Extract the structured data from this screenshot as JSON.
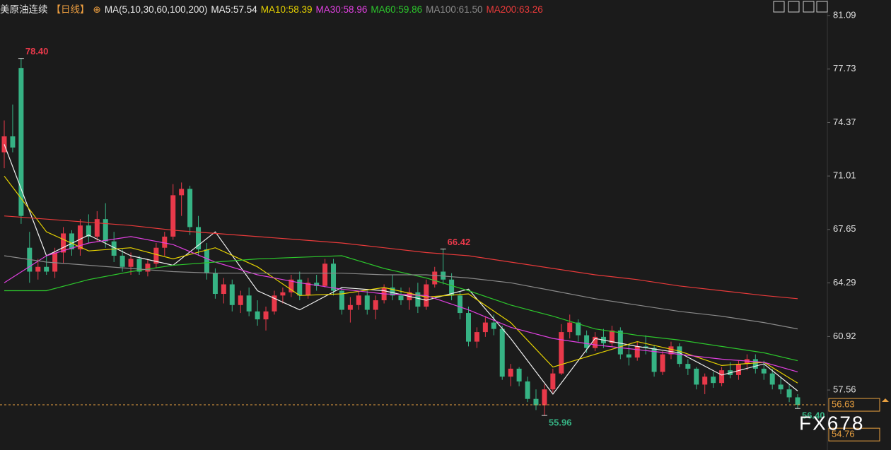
{
  "chart_data": {
    "type": "candlestick",
    "title": "美原油连续",
    "period": "【日线】",
    "ma_params": "MA(5,10,30,60,100,200)",
    "watermark": "FX678",
    "ylim": [
      53.79,
      82.07
    ],
    "yticks": [
      81.09,
      77.73,
      74.37,
      71.01,
      67.65,
      64.29,
      60.92,
      57.56
    ],
    "up_color": "#e8394a",
    "down_color": "#36b384",
    "ohlc": [
      [
        72.5,
        74.5,
        71.5,
        73.5
      ],
      [
        73.5,
        75.5,
        72.5,
        72.8
      ],
      [
        77.8,
        78.4,
        68.0,
        68.5
      ],
      [
        66.5,
        67.5,
        64.3,
        65.0
      ],
      [
        65.0,
        65.8,
        64.5,
        65.3
      ],
      [
        65.3,
        66.0,
        64.8,
        65.0
      ],
      [
        65.0,
        66.5,
        64.6,
        66.2
      ],
      [
        66.2,
        67.8,
        65.5,
        67.4
      ],
      [
        67.4,
        67.6,
        66.0,
        66.4
      ],
      [
        66.4,
        68.3,
        66.0,
        67.9
      ],
      [
        67.9,
        68.6,
        66.8,
        67.2
      ],
      [
        67.2,
        68.8,
        66.9,
        68.3
      ],
      [
        68.3,
        69.3,
        66.5,
        66.9
      ],
      [
        66.9,
        67.5,
        65.6,
        66.0
      ],
      [
        66.0,
        66.4,
        65.0,
        65.3
      ],
      [
        65.3,
        66.2,
        64.8,
        65.8
      ],
      [
        65.8,
        66.0,
        64.8,
        65.0
      ],
      [
        65.0,
        65.8,
        64.7,
        65.5
      ],
      [
        65.5,
        66.8,
        65.2,
        66.5
      ],
      [
        66.5,
        67.5,
        66.0,
        67.2
      ],
      [
        67.2,
        70.5,
        67.0,
        69.8
      ],
      [
        69.8,
        70.6,
        68.5,
        70.2
      ],
      [
        70.2,
        70.4,
        67.3,
        67.8
      ],
      [
        67.8,
        68.5,
        66.0,
        66.4
      ],
      [
        66.4,
        66.8,
        64.5,
        64.9
      ],
      [
        64.9,
        65.2,
        63.3,
        63.6
      ],
      [
        63.6,
        64.6,
        63.0,
        64.2
      ],
      [
        64.2,
        64.5,
        62.5,
        62.9
      ],
      [
        62.9,
        63.8,
        62.4,
        63.5
      ],
      [
        63.5,
        64.0,
        62.2,
        62.5
      ],
      [
        62.5,
        63.2,
        61.6,
        62.0
      ],
      [
        62.0,
        62.8,
        61.3,
        62.5
      ],
      [
        62.5,
        63.8,
        62.3,
        63.5
      ],
      [
        63.5,
        64.0,
        63.0,
        63.7
      ],
      [
        63.7,
        64.8,
        63.4,
        64.5
      ],
      [
        64.5,
        65.0,
        63.2,
        63.5
      ],
      [
        63.5,
        64.6,
        63.3,
        64.3
      ],
      [
        64.3,
        64.8,
        63.8,
        64.1
      ],
      [
        64.1,
        65.8,
        64.0,
        65.5
      ],
      [
        65.5,
        65.8,
        63.5,
        63.8
      ],
      [
        63.8,
        64.0,
        62.3,
        62.6
      ],
      [
        62.6,
        63.4,
        61.8,
        62.9
      ],
      [
        62.9,
        63.8,
        62.6,
        63.5
      ],
      [
        63.5,
        63.8,
        62.3,
        62.6
      ],
      [
        62.6,
        63.5,
        62.0,
        63.2
      ],
      [
        63.2,
        64.2,
        63.0,
        64.0
      ],
      [
        64.0,
        64.8,
        63.2,
        63.5
      ],
      [
        63.5,
        64.0,
        62.9,
        63.2
      ],
      [
        63.2,
        64.0,
        62.6,
        63.7
      ],
      [
        63.7,
        64.3,
        62.4,
        62.8
      ],
      [
        62.8,
        64.5,
        62.6,
        64.2
      ],
      [
        64.2,
        65.3,
        64.0,
        65.0
      ],
      [
        65.0,
        66.42,
        64.2,
        64.5
      ],
      [
        64.5,
        64.9,
        63.2,
        63.5
      ],
      [
        63.5,
        63.8,
        62.0,
        62.4
      ],
      [
        62.4,
        62.8,
        60.3,
        60.6
      ],
      [
        60.6,
        61.5,
        60.2,
        61.2
      ],
      [
        61.2,
        62.2,
        60.9,
        61.8
      ],
      [
        61.8,
        62.3,
        61.0,
        61.4
      ],
      [
        61.4,
        61.6,
        58.2,
        58.4
      ],
      [
        58.4,
        59.2,
        57.8,
        58.9
      ],
      [
        58.9,
        59.0,
        57.8,
        58.1
      ],
      [
        58.1,
        58.4,
        56.8,
        57.0
      ],
      [
        57.0,
        57.6,
        56.3,
        56.6
      ],
      [
        56.6,
        57.9,
        55.96,
        57.6
      ],
      [
        57.6,
        58.9,
        57.4,
        58.6
      ],
      [
        58.6,
        61.7,
        58.5,
        61.2
      ],
      [
        61.2,
        62.3,
        60.8,
        61.8
      ],
      [
        61.8,
        62.0,
        60.6,
        61.0
      ],
      [
        61.0,
        61.3,
        59.9,
        60.2
      ],
      [
        60.2,
        61.2,
        60.0,
        60.9
      ],
      [
        60.9,
        61.4,
        60.2,
        60.5
      ],
      [
        60.5,
        61.6,
        60.3,
        61.3
      ],
      [
        61.3,
        61.5,
        59.5,
        59.8
      ],
      [
        59.8,
        60.4,
        59.1,
        59.6
      ],
      [
        59.6,
        60.6,
        59.4,
        60.3
      ],
      [
        60.3,
        61.0,
        59.8,
        60.2
      ],
      [
        60.2,
        60.4,
        58.4,
        58.7
      ],
      [
        58.7,
        60.0,
        58.5,
        59.8
      ],
      [
        59.8,
        60.6,
        59.5,
        60.3
      ],
      [
        60.3,
        60.5,
        59.0,
        59.2
      ],
      [
        59.2,
        59.5,
        58.5,
        58.9
      ],
      [
        58.9,
        59.0,
        57.6,
        57.9
      ],
      [
        57.9,
        58.6,
        57.3,
        58.4
      ],
      [
        58.4,
        58.7,
        57.7,
        58.0
      ],
      [
        58.0,
        59.0,
        57.8,
        58.8
      ],
      [
        58.8,
        59.3,
        58.3,
        58.5
      ],
      [
        58.5,
        59.4,
        58.2,
        59.2
      ],
      [
        59.2,
        59.8,
        58.8,
        59.5
      ],
      [
        59.5,
        59.8,
        58.6,
        58.9
      ],
      [
        58.9,
        59.4,
        58.2,
        58.6
      ],
      [
        58.6,
        58.9,
        57.6,
        57.9
      ],
      [
        57.9,
        58.4,
        57.3,
        57.6
      ],
      [
        57.6,
        57.9,
        56.8,
        57.1
      ],
      [
        57.1,
        57.3,
        56.4,
        56.63
      ]
    ],
    "ma_x": [
      0,
      5,
      10,
      15,
      20,
      25,
      30,
      35,
      40,
      45,
      50,
      55,
      60,
      65,
      70,
      75,
      80,
      85,
      90,
      94
    ],
    "series": [
      {
        "name": "MA5:57.54",
        "color": "#f0f0f0",
        "values": [
          73.0,
          66.0,
          67.3,
          66.0,
          65.4,
          67.5,
          63.8,
          62.6,
          64.0,
          63.8,
          63.2,
          63.9,
          60.8,
          57.3,
          60.8,
          60.3,
          59.9,
          58.5,
          59.2,
          57.5
        ]
      },
      {
        "name": "MA10:58.39",
        "color": "#e6d200",
        "values": [
          71.0,
          67.5,
          66.3,
          66.5,
          65.8,
          66.5,
          65.3,
          63.5,
          63.6,
          64.0,
          63.4,
          63.6,
          61.8,
          59.0,
          59.8,
          60.6,
          60.0,
          59.1,
          59.3,
          58.0
        ]
      },
      {
        "name": "MA30:58.96",
        "color": "#e040e0",
        "values": [
          64.3,
          66.0,
          66.8,
          67.2,
          66.7,
          65.6,
          64.8,
          64.3,
          63.9,
          63.6,
          63.5,
          62.6,
          61.5,
          60.8,
          60.4,
          60.1,
          59.8,
          59.5,
          59.3,
          58.7
        ]
      },
      {
        "name": "MA60:59.86",
        "color": "#2cc62c",
        "values": [
          63.8,
          63.8,
          64.5,
          65.0,
          65.4,
          65.6,
          65.8,
          65.9,
          66.0,
          65.2,
          64.6,
          63.8,
          62.9,
          62.2,
          61.4,
          61.0,
          60.7,
          60.3,
          59.9,
          59.4
        ]
      },
      {
        "name": "MA100:61.50",
        "color": "#8a8a8a",
        "values": [
          66.0,
          65.6,
          65.4,
          65.2,
          65.0,
          64.9,
          64.9,
          64.9,
          64.9,
          64.8,
          64.8,
          64.6,
          64.3,
          63.8,
          63.3,
          62.9,
          62.5,
          62.2,
          61.8,
          61.4
        ]
      },
      {
        "name": "MA200:63.26",
        "color": "#e83a3a",
        "values": [
          68.5,
          68.3,
          68.1,
          67.9,
          67.6,
          67.4,
          67.2,
          67.0,
          66.8,
          66.5,
          66.2,
          66.0,
          65.6,
          65.2,
          64.8,
          64.5,
          64.1,
          63.8,
          63.5,
          63.3
        ]
      }
    ],
    "extreme_labels": [
      {
        "value": 78.4,
        "label": "78.40",
        "kind": "high"
      },
      {
        "value": 66.42,
        "label": "66.42",
        "kind": "high"
      },
      {
        "value": 55.96,
        "label": "55.96",
        "kind": "low"
      },
      {
        "value": 56.4,
        "label": "56.40",
        "kind": "low"
      }
    ],
    "price_tags": [
      {
        "value": 56.63,
        "label": "56.63"
      },
      {
        "value": 54.76,
        "label": "54.76"
      }
    ]
  }
}
